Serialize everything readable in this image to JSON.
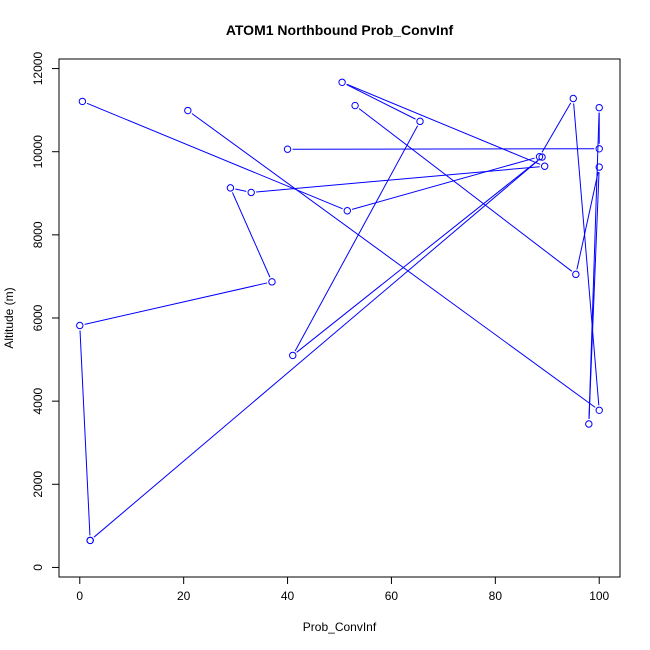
{
  "chart_data": {
    "type": "line",
    "title": "ATOM1 Northbound Prob_ConvInf",
    "xlabel": "Prob_ConvInf",
    "ylabel": "Altitude (m)",
    "xlim": [
      -4,
      104
    ],
    "ylim": [
      -230,
      12230
    ],
    "xticks": [
      0,
      20,
      40,
      60,
      80,
      100
    ],
    "yticks": [
      0,
      2000,
      4000,
      6000,
      8000,
      10000,
      12000
    ],
    "grid": false,
    "color": "#0000ff",
    "series": [
      {
        "points": [
          [
            2,
            650
          ],
          [
            89,
            9870
          ],
          [
            41,
            5100
          ],
          [
            65.5,
            10730
          ],
          [
            50.5,
            11670
          ],
          [
            89.5,
            9650
          ],
          [
            33,
            9020
          ],
          [
            29,
            9130
          ],
          [
            37,
            6870
          ],
          [
            0,
            5820
          ],
          [
            2,
            650
          ]
        ]
      },
      {
        "points": [
          [
            0.5,
            11210
          ],
          [
            51.5,
            8580
          ],
          [
            88.5,
            9880
          ],
          [
            95,
            11280
          ],
          [
            100,
            3780
          ],
          [
            20.8,
            10990
          ]
        ]
      },
      {
        "points": [
          [
            53,
            11110
          ],
          [
            95.5,
            7050
          ],
          [
            100,
            9630
          ],
          [
            98,
            3450
          ],
          [
            100,
            11060
          ],
          [
            100,
            10070
          ],
          [
            40,
            10060
          ]
        ]
      }
    ]
  }
}
